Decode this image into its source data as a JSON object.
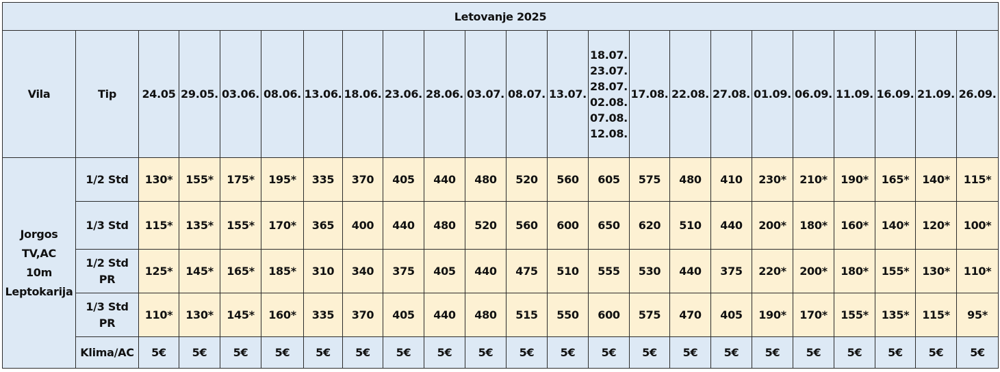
{
  "title": "Letovanje 2025",
  "headers": {
    "vila": "Vila",
    "tip": "Tip",
    "dates": [
      "24.05",
      "29.05.",
      "03.06.",
      "08.06.",
      "13.06.",
      "18.06.",
      "23.06.",
      "28.06.",
      "03.07.",
      "08.07.",
      "13.07.",
      "18.07.\n23.07.\n28.07.\n02.08.\n07.08.\n12.08.",
      "17.08.",
      "22.08.",
      "27.08.",
      "01.09.",
      "06.09.",
      "11.09.",
      "16.09.",
      "21.09.",
      "26.09."
    ]
  },
  "villa": {
    "name_lines": [
      "Jorgos",
      "TV,AC",
      "10m",
      "Leptokarija"
    ]
  },
  "rows": [
    {
      "tip_lines": [
        "1/2 Std"
      ],
      "prices": [
        "130*",
        "155*",
        "175*",
        "195*",
        "335",
        "370",
        "405",
        "440",
        "480",
        "520",
        "560",
        "605",
        "575",
        "480",
        "410",
        "230*",
        "210*",
        "190*",
        "165*",
        "140*",
        "115*"
      ]
    },
    {
      "tip_lines": [
        "1/3 Std"
      ],
      "prices": [
        "115*",
        "135*",
        "155*",
        "170*",
        "365",
        "400",
        "440",
        "480",
        "520",
        "560",
        "600",
        "650",
        "620",
        "510",
        "440",
        "200*",
        "180*",
        "160*",
        "140*",
        "120*",
        "100*"
      ]
    },
    {
      "tip_lines": [
        "1/2 Std",
        "PR"
      ],
      "prices": [
        "125*",
        "145*",
        "165*",
        "185*",
        "310",
        "340",
        "375",
        "405",
        "440",
        "475",
        "510",
        "555",
        "530",
        "440",
        "375",
        "220*",
        "200*",
        "180*",
        "155*",
        "130*",
        "110*"
      ]
    },
    {
      "tip_lines": [
        "1/3 Std",
        "PR"
      ],
      "prices": [
        "110*",
        "130*",
        "145*",
        "160*",
        "335",
        "370",
        "405",
        "440",
        "480",
        "515",
        "550",
        "600",
        "575",
        "470",
        "405",
        "190*",
        "170*",
        "155*",
        "135*",
        "115*",
        "95*"
      ]
    }
  ],
  "extra": {
    "label": "Klima/AC",
    "values": [
      "5€",
      "5€",
      "5€",
      "5€",
      "5€",
      "5€",
      "5€",
      "5€",
      "5€",
      "5€",
      "5€",
      "5€",
      "5€",
      "5€",
      "5€",
      "5€",
      "5€",
      "5€",
      "5€",
      "5€",
      "5€"
    ]
  },
  "colors": {
    "header_bg": "#dde9f5",
    "price_bg": "#fdf1d3",
    "border": "#2b2b2b"
  }
}
